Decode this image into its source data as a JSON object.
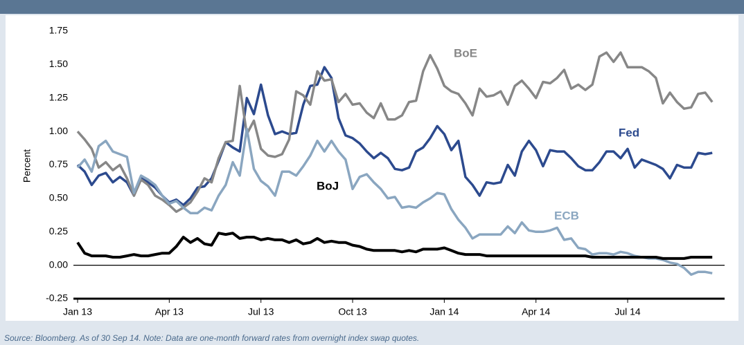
{
  "chart_data": {
    "type": "line",
    "y_label": "Percent",
    "note": "Source: Bloomberg. As of 30 Sep 14. Note: Data are one-month forward rates from overnight index swap quotes.",
    "categories": [
      "Jan 13",
      null,
      null,
      null,
      null,
      null,
      null,
      null,
      null,
      null,
      null,
      null,
      null,
      "Apr 13",
      null,
      null,
      null,
      null,
      null,
      null,
      null,
      null,
      null,
      null,
      null,
      null,
      "Jul 13",
      null,
      null,
      null,
      null,
      null,
      null,
      null,
      null,
      null,
      null,
      null,
      null,
      "Oct 13",
      null,
      null,
      null,
      null,
      null,
      null,
      null,
      null,
      null,
      null,
      null,
      null,
      "Jan 14",
      null,
      null,
      null,
      null,
      null,
      null,
      null,
      null,
      null,
      null,
      null,
      null,
      "Apr 14",
      null,
      null,
      null,
      null,
      null,
      null,
      null,
      null,
      null,
      null,
      null,
      null,
      "Jul 14",
      null,
      null,
      null,
      null,
      null,
      null,
      null,
      null,
      null,
      null,
      null,
      null
    ],
    "series": [
      {
        "name": "Fed",
        "color": "#2c4a8e",
        "values": [
          0.75,
          0.7,
          0.6,
          0.67,
          0.69,
          0.62,
          0.66,
          0.62,
          0.52,
          0.65,
          0.62,
          0.58,
          0.52,
          0.47,
          0.49,
          0.45,
          0.5,
          0.58,
          0.59,
          0.65,
          0.78,
          0.92,
          0.88,
          0.85,
          1.25,
          1.13,
          1.35,
          1.12,
          0.98,
          1.0,
          0.98,
          0.99,
          1.2,
          1.34,
          1.35,
          1.48,
          1.4,
          1.1,
          0.97,
          0.95,
          0.91,
          0.85,
          0.8,
          0.84,
          0.8,
          0.72,
          0.71,
          0.73,
          0.85,
          0.88,
          0.95,
          1.04,
          0.98,
          0.86,
          0.93,
          0.66,
          0.6,
          0.52,
          0.62,
          0.61,
          0.62,
          0.75,
          0.67,
          0.85,
          0.93,
          0.86,
          0.74,
          0.86,
          0.85,
          0.85,
          0.8,
          0.74,
          0.71,
          0.71,
          0.77,
          0.85,
          0.85,
          0.8,
          0.87,
          0.73,
          0.79,
          0.77,
          0.75,
          0.72,
          0.65,
          0.75,
          0.73,
          0.73,
          0.84,
          0.83,
          0.84
        ]
      },
      {
        "name": "BoE",
        "color": "#878787",
        "values": [
          1.0,
          0.94,
          0.87,
          0.73,
          0.77,
          0.71,
          0.75,
          0.65,
          0.52,
          0.64,
          0.6,
          0.52,
          0.49,
          0.45,
          0.4,
          0.43,
          0.47,
          0.55,
          0.65,
          0.62,
          0.8,
          0.92,
          0.93,
          1.34,
          0.98,
          1.08,
          0.87,
          0.82,
          0.81,
          0.83,
          0.94,
          1.3,
          1.27,
          1.2,
          1.45,
          1.38,
          1.39,
          1.22,
          1.28,
          1.2,
          1.21,
          1.14,
          1.1,
          1.21,
          1.09,
          1.09,
          1.12,
          1.22,
          1.23,
          1.45,
          1.57,
          1.47,
          1.34,
          1.3,
          1.28,
          1.21,
          1.12,
          1.32,
          1.26,
          1.27,
          1.3,
          1.2,
          1.34,
          1.38,
          1.32,
          1.25,
          1.37,
          1.36,
          1.4,
          1.46,
          1.32,
          1.35,
          1.31,
          1.35,
          1.56,
          1.59,
          1.52,
          1.59,
          1.48,
          1.48,
          1.48,
          1.45,
          1.4,
          1.21,
          1.29,
          1.22,
          1.17,
          1.18,
          1.28,
          1.29,
          1.22
        ]
      },
      {
        "name": "ECB",
        "color": "#8aa6c0",
        "values": [
          0.73,
          0.79,
          0.7,
          0.89,
          0.93,
          0.85,
          0.83,
          0.81,
          0.54,
          0.67,
          0.64,
          0.6,
          0.52,
          0.46,
          0.48,
          0.43,
          0.39,
          0.39,
          0.43,
          0.41,
          0.52,
          0.6,
          0.77,
          0.67,
          1.02,
          0.72,
          0.63,
          0.59,
          0.52,
          0.7,
          0.7,
          0.67,
          0.74,
          0.82,
          0.93,
          0.85,
          0.93,
          0.85,
          0.79,
          0.57,
          0.66,
          0.68,
          0.62,
          0.57,
          0.5,
          0.51,
          0.43,
          0.44,
          0.43,
          0.47,
          0.5,
          0.54,
          0.53,
          0.42,
          0.34,
          0.28,
          0.2,
          0.23,
          0.23,
          0.23,
          0.23,
          0.29,
          0.24,
          0.32,
          0.26,
          0.25,
          0.25,
          0.26,
          0.28,
          0.19,
          0.2,
          0.13,
          0.12,
          0.08,
          0.09,
          0.09,
          0.08,
          0.1,
          0.09,
          0.07,
          0.06,
          0.05,
          0.05,
          0.04,
          0.02,
          0.01,
          -0.02,
          -0.07,
          -0.05,
          -0.05,
          -0.06
        ]
      },
      {
        "name": "BoJ",
        "color": "#000000",
        "values": [
          0.17,
          0.09,
          0.07,
          0.07,
          0.07,
          0.06,
          0.06,
          0.07,
          0.08,
          0.07,
          0.07,
          0.08,
          0.09,
          0.09,
          0.14,
          0.21,
          0.17,
          0.2,
          0.16,
          0.15,
          0.24,
          0.23,
          0.24,
          0.2,
          0.21,
          0.21,
          0.19,
          0.2,
          0.19,
          0.19,
          0.17,
          0.19,
          0.16,
          0.17,
          0.2,
          0.17,
          0.18,
          0.17,
          0.17,
          0.15,
          0.14,
          0.12,
          0.11,
          0.11,
          0.11,
          0.11,
          0.1,
          0.11,
          0.1,
          0.12,
          0.12,
          0.12,
          0.13,
          0.11,
          0.09,
          0.08,
          0.08,
          0.08,
          0.07,
          0.07,
          0.07,
          0.07,
          0.07,
          0.07,
          0.07,
          0.07,
          0.07,
          0.07,
          0.07,
          0.07,
          0.07,
          0.07,
          0.07,
          0.06,
          0.06,
          0.06,
          0.06,
          0.06,
          0.06,
          0.06,
          0.06,
          0.06,
          0.06,
          0.05,
          0.05,
          0.05,
          0.05,
          0.06,
          0.06,
          0.06,
          0.06
        ]
      }
    ],
    "ylim": [
      -0.25,
      1.75
    ],
    "yticks": [
      -0.25,
      {
        "value": 0,
        "label": "0.00"
      },
      0.25,
      {
        "value": 0.5,
        "label": "0.50"
      },
      0.75,
      {
        "value": 1,
        "label": "1.00"
      },
      1.25,
      {
        "value": 1.5,
        "label": "1.50"
      },
      1.75
    ]
  }
}
